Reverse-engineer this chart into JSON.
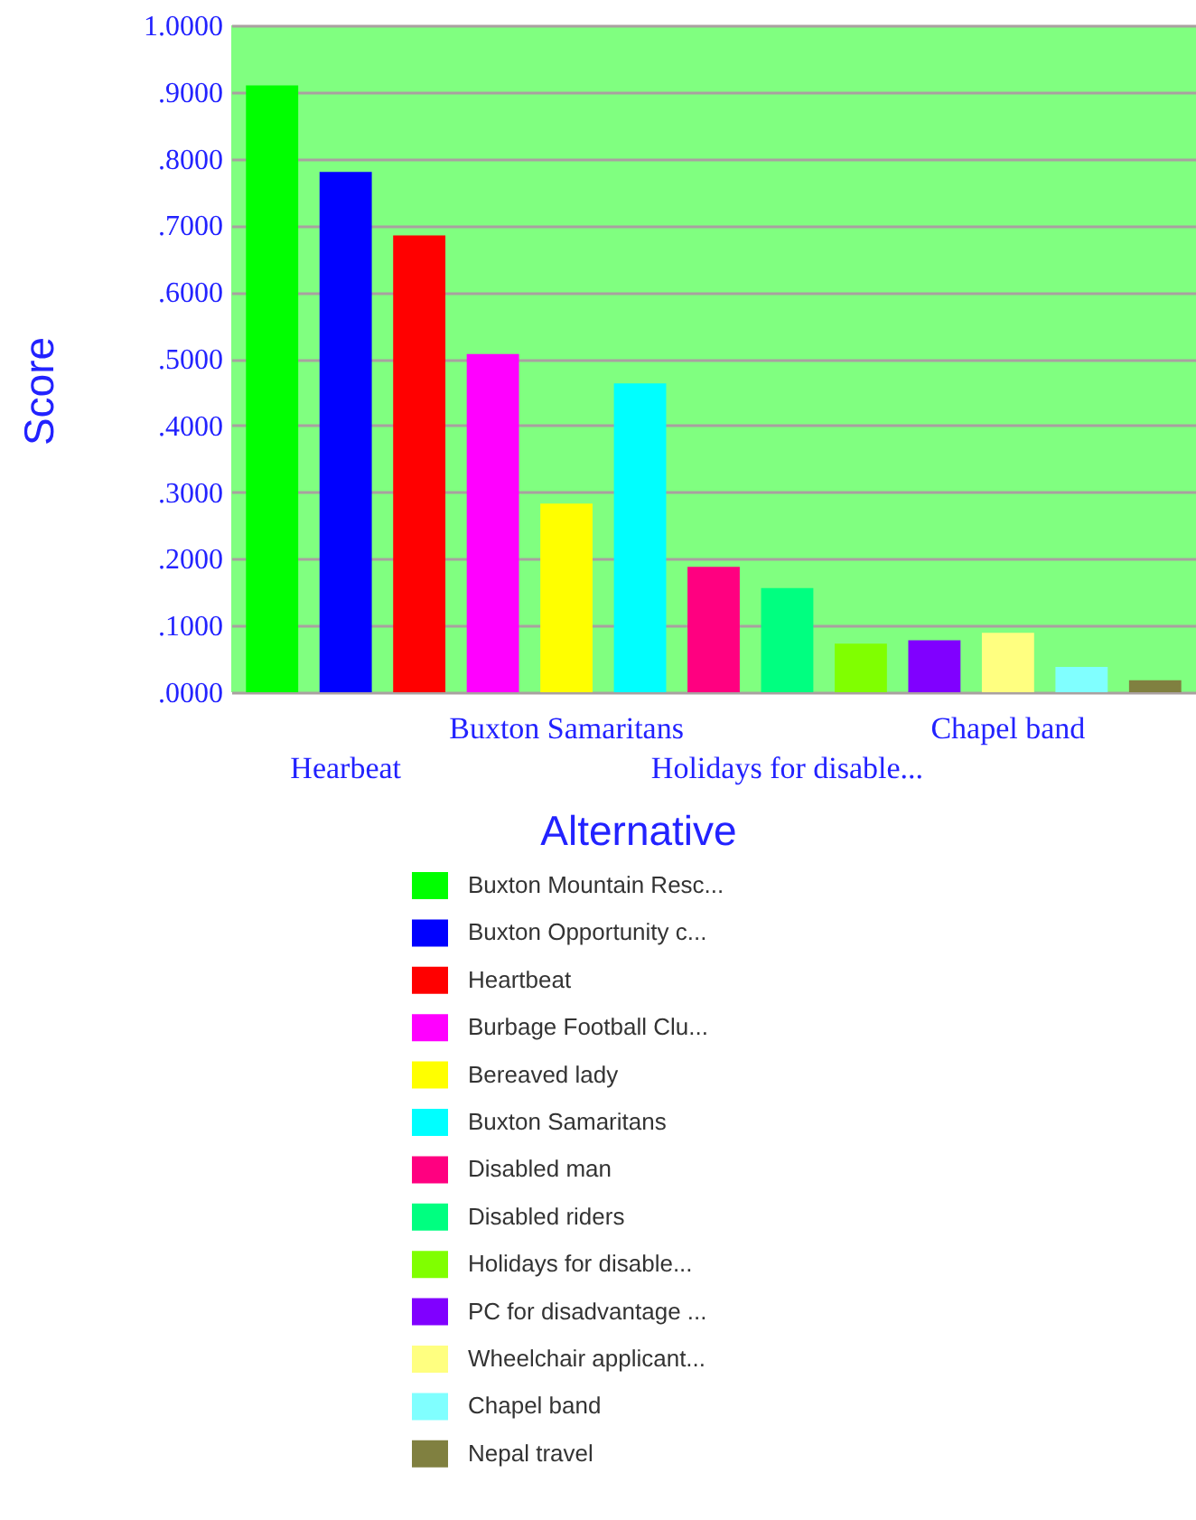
{
  "chart_data": {
    "type": "bar",
    "stacked": true,
    "xlabel": "Alternative",
    "ylabel": "Score",
    "categories": [
      null,
      "Hearbeat",
      null,
      null,
      "Buxton Samaritans",
      null,
      null,
      "Holidays for disable...",
      null,
      null,
      "Chapel band",
      null,
      null
    ],
    "series": [
      {
        "name": "Buxton Mountain Resc...",
        "color": "#00ff00",
        "values": [
          0.91,
          null,
          null,
          null,
          null,
          null,
          null,
          null,
          null,
          null,
          null,
          null,
          null
        ]
      },
      {
        "name": "Buxton Opportunity c...",
        "color": "#0000ff",
        "values": [
          null,
          0.78,
          null,
          null,
          null,
          null,
          null,
          null,
          null,
          null,
          null,
          null,
          null
        ]
      },
      {
        "name": "Heartbeat",
        "color": "#ff0000",
        "values": [
          null,
          null,
          0.685,
          null,
          null,
          null,
          null,
          null,
          null,
          null,
          null,
          null,
          null
        ]
      },
      {
        "name": "Burbage Football Clu...",
        "color": "#ff00ff",
        "values": [
          null,
          null,
          null,
          0.507,
          null,
          null,
          null,
          null,
          null,
          null,
          null,
          null,
          null
        ]
      },
      {
        "name": "Bereaved lady",
        "color": "#ffff00",
        "values": [
          null,
          null,
          null,
          null,
          0.283,
          null,
          null,
          null,
          null,
          null,
          null,
          null,
          null
        ]
      },
      {
        "name": "Buxton Samaritans",
        "color": "#00ffff",
        "values": [
          null,
          null,
          null,
          null,
          null,
          0.463,
          null,
          null,
          null,
          null,
          null,
          null,
          null
        ]
      },
      {
        "name": "Disabled man",
        "color": "#ff0080",
        "values": [
          null,
          null,
          null,
          null,
          null,
          null,
          0.188,
          null,
          null,
          null,
          null,
          null,
          null
        ]
      },
      {
        "name": "Disabled riders",
        "color": "#00ff80",
        "values": [
          null,
          null,
          null,
          null,
          null,
          null,
          null,
          0.156,
          null,
          null,
          null,
          null,
          null
        ]
      },
      {
        "name": "Holidays for disable...",
        "color": "#80ff00",
        "values": [
          null,
          null,
          null,
          null,
          null,
          null,
          null,
          null,
          0.073,
          null,
          null,
          null,
          null
        ]
      },
      {
        "name": "PC for disadvantage ...",
        "color": "#8000ff",
        "values": [
          null,
          null,
          null,
          null,
          null,
          null,
          null,
          null,
          null,
          0.078,
          null,
          null,
          null
        ]
      },
      {
        "name": "Wheelchair applicant...",
        "color": "#ffff80",
        "values": [
          null,
          null,
          null,
          null,
          null,
          null,
          null,
          null,
          null,
          null,
          0.089,
          null,
          null
        ]
      },
      {
        "name": "Chapel band",
        "color": "#80ffff",
        "values": [
          null,
          null,
          null,
          null,
          null,
          null,
          null,
          null,
          null,
          null,
          null,
          0.038,
          null
        ]
      },
      {
        "name": "Nepal travel",
        "color": "#808040",
        "values": [
          null,
          null,
          null,
          null,
          null,
          null,
          null,
          null,
          null,
          null,
          null,
          null,
          0.018
        ]
      }
    ],
    "ylim": [
      0,
      1
    ],
    "yticks": [
      {
        "value": 0,
        "label": ".0000"
      },
      {
        "value": 0.1,
        "label": ".1000"
      },
      {
        "value": 0.2,
        "label": ".2000"
      },
      {
        "value": 0.3,
        "label": ".3000"
      },
      {
        "value": 0.4,
        "label": ".4000"
      },
      {
        "value": 0.5,
        "label": ".5000"
      },
      {
        "value": 0.6,
        "label": ".6000"
      },
      {
        "value": 0.7,
        "label": ".7000"
      },
      {
        "value": 0.8,
        "label": ".8000"
      },
      {
        "value": 0.9,
        "label": ".9000"
      },
      {
        "value": 1,
        "label": "1.0000"
      }
    ],
    "grid": "y",
    "legend": "bottom"
  }
}
